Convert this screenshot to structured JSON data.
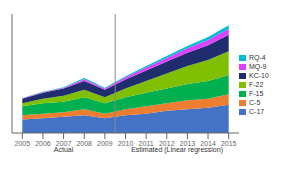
{
  "chart_data": {
    "type": "area",
    "stacked": true,
    "tick_labels": "x",
    "legend": "right",
    "x": [
      2005,
      2006,
      2007,
      2008,
      2009,
      2010,
      2011,
      2012,
      2013,
      2014,
      2015
    ],
    "xlim": [
      2004.5,
      2015.5
    ],
    "xticks": [
      2005,
      2006,
      2007,
      2008,
      2009,
      2010,
      2011,
      2012,
      2013,
      2014,
      2015
    ],
    "ylim": [
      0,
      80
    ],
    "yticks": [],
    "series": [
      {
        "name": "C-17",
        "color": "#4472C4",
        "values": [
          9,
          10,
          11,
          12,
          10,
          12,
          13,
          15,
          16,
          17,
          19
        ]
      },
      {
        "name": "C-5",
        "color": "#ED7D31",
        "values": [
          3,
          3,
          3,
          4,
          3,
          4,
          5,
          5,
          6,
          6,
          7
        ]
      },
      {
        "name": "F-15",
        "color": "#00B050",
        "values": [
          6,
          7,
          7,
          8,
          7,
          8,
          9,
          10,
          11,
          12,
          13
        ]
      },
      {
        "name": "F-22",
        "color": "#7FBF00",
        "values": [
          2,
          3,
          4,
          5,
          4,
          6,
          8,
          10,
          12,
          14,
          16
        ]
      },
      {
        "name": "KC-10",
        "color": "#1F2D6E",
        "values": [
          3,
          4,
          5,
          6,
          5,
          6,
          7,
          8,
          9,
          10,
          11
        ]
      },
      {
        "name": "MQ-9",
        "color": "#E040FB",
        "values": [
          0.3,
          0.4,
          0.5,
          1.2,
          0.9,
          1.5,
          2.0,
          2.5,
          3.0,
          3.5,
          4.0
        ]
      },
      {
        "name": "RQ-4",
        "color": "#00BCD4",
        "values": [
          0.2,
          0.3,
          0.3,
          0.7,
          0.5,
          0.7,
          1.0,
          1.2,
          1.5,
          2.0,
          2.5
        ]
      }
    ],
    "legend_order": [
      "RQ-4",
      "MQ-9",
      "KC-10",
      "F-22",
      "F-15",
      "C-5",
      "C-17"
    ],
    "annotations": [
      {
        "text": "Actual",
        "x": 2007
      },
      {
        "text": "Estimated (Linear regression)",
        "x": 2012.5
      }
    ],
    "vlines": [
      2009.5
    ]
  }
}
